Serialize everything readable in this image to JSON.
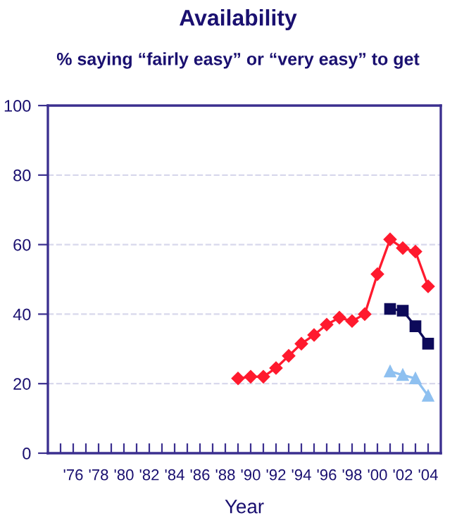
{
  "chart_data": {
    "type": "line",
    "title": "Availability",
    "subtitle": "% saying “fairly easy” or “very easy” to get",
    "xlabel": "Year",
    "xlim": [
      1974,
      2005
    ],
    "xticks": [
      {
        "value": 1975,
        "label": null
      },
      {
        "value": 1976,
        "label": "'76"
      },
      {
        "value": 1977,
        "label": null
      },
      {
        "value": 1978,
        "label": "'78"
      },
      {
        "value": 1979,
        "label": null
      },
      {
        "value": 1980,
        "label": "'80"
      },
      {
        "value": 1981,
        "label": null
      },
      {
        "value": 1982,
        "label": "'82"
      },
      {
        "value": 1983,
        "label": null
      },
      {
        "value": 1984,
        "label": "'84"
      },
      {
        "value": 1985,
        "label": null
      },
      {
        "value": 1986,
        "label": "'86"
      },
      {
        "value": 1987,
        "label": null
      },
      {
        "value": 1988,
        "label": "'88"
      },
      {
        "value": 1989,
        "label": null
      },
      {
        "value": 1990,
        "label": "'90"
      },
      {
        "value": 1991,
        "label": null
      },
      {
        "value": 1992,
        "label": "'92"
      },
      {
        "value": 1993,
        "label": null
      },
      {
        "value": 1994,
        "label": "'94"
      },
      {
        "value": 1995,
        "label": null
      },
      {
        "value": 1996,
        "label": "'96"
      },
      {
        "value": 1997,
        "label": null
      },
      {
        "value": 1998,
        "label": "'98"
      },
      {
        "value": 1999,
        "label": null
      },
      {
        "value": 2000,
        "label": "'00"
      },
      {
        "value": 2001,
        "label": null
      },
      {
        "value": 2002,
        "label": "'02"
      },
      {
        "value": 2003,
        "label": null
      },
      {
        "value": 2004,
        "label": "'04"
      }
    ],
    "ylim": [
      0,
      100
    ],
    "yticks": [
      0,
      20,
      40,
      60,
      80,
      100
    ],
    "grid": "y",
    "legend": false,
    "series": [
      {
        "color": "#ff1a2e",
        "marker": "diamond",
        "x": [
          1989,
          1990,
          1991,
          1992,
          1993,
          1994,
          1995,
          1996,
          1997,
          1998,
          1999,
          2000,
          2001,
          2002,
          2003,
          2004
        ],
        "values": [
          21.5,
          22,
          22,
          24.5,
          28,
          31.5,
          34,
          37,
          39,
          38,
          40,
          51.5,
          61.5,
          59,
          58,
          48
        ]
      },
      {
        "color": "#0d0a5a",
        "marker": "square",
        "x": [
          2001,
          2002,
          2003,
          2004
        ],
        "values": [
          41.5,
          41,
          36.5,
          31.5
        ]
      },
      {
        "color": "#8ec0f0",
        "marker": "triangle",
        "x": [
          2001,
          2002,
          2003,
          2004
        ],
        "values": [
          23.5,
          22.5,
          21.5,
          16.5
        ]
      }
    ]
  }
}
